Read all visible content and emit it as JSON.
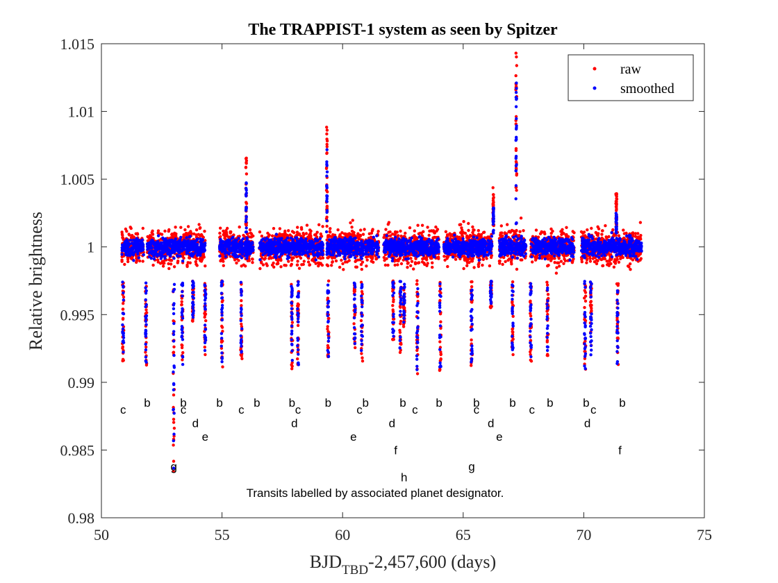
{
  "chart_data": {
    "type": "scatter",
    "title": "The TRAPPIST-1 system as seen by Spitzer",
    "xlabel": {
      "main": "BJD",
      "sub": "TBD",
      "rest": "-2,457,600 (days)"
    },
    "ylabel": "Relative brightness",
    "xlim": [
      50,
      75
    ],
    "ylim": [
      0.98,
      1.015
    ],
    "xticks": [
      50,
      55,
      60,
      65,
      70,
      75
    ],
    "xtick_labels": [
      "50",
      "55",
      "60",
      "65",
      "70",
      "75"
    ],
    "yticks": [
      0.98,
      0.985,
      0.99,
      0.995,
      1.0,
      1.005,
      1.01,
      1.015
    ],
    "ytick_labels": [
      "0.98",
      "0.985",
      "0.99",
      "0.995",
      "1",
      "1.005",
      "1.01",
      "1.015"
    ],
    "grid": false,
    "legend_position": "top-right",
    "series": [
      {
        "name": "raw",
        "color": "#ff0000",
        "marker": "point",
        "baseline": 1.0,
        "scatter_half_width": 0.0016
      },
      {
        "name": "smoothed",
        "color": "#0000ff",
        "marker": "point",
        "baseline": 1.0,
        "scatter_half_width": 0.0011
      }
    ],
    "observing_segments": [
      [
        50.85,
        51.75
      ],
      [
        51.9,
        54.3
      ],
      [
        54.9,
        56.3
      ],
      [
        56.55,
        59.2
      ],
      [
        59.35,
        61.5
      ],
      [
        61.7,
        64.0
      ],
      [
        64.2,
        66.2
      ],
      [
        66.5,
        67.6
      ],
      [
        67.8,
        69.6
      ],
      [
        69.9,
        72.4
      ]
    ],
    "transit_dips": [
      [
        50.9,
        0.9915
      ],
      [
        51.85,
        0.991
      ],
      [
        53.0,
        0.9828
      ],
      [
        53.35,
        0.991
      ],
      [
        53.8,
        0.9945
      ],
      [
        54.3,
        0.992
      ],
      [
        55.0,
        0.991
      ],
      [
        55.8,
        0.9915
      ],
      [
        57.9,
        0.991
      ],
      [
        58.15,
        0.991
      ],
      [
        59.4,
        0.9915
      ],
      [
        60.5,
        0.9925
      ],
      [
        60.8,
        0.9915
      ],
      [
        62.1,
        0.993
      ],
      [
        62.4,
        0.992
      ],
      [
        62.55,
        0.994
      ],
      [
        63.1,
        0.9905
      ],
      [
        64.05,
        0.9905
      ],
      [
        65.35,
        0.991
      ],
      [
        66.15,
        0.9955
      ],
      [
        67.05,
        0.992
      ],
      [
        67.8,
        0.9915
      ],
      [
        68.5,
        0.9915
      ],
      [
        70.05,
        0.9905
      ],
      [
        70.3,
        0.9915
      ],
      [
        71.4,
        0.991
      ]
    ],
    "flares": [
      [
        56.0,
        1.0066
      ],
      [
        59.35,
        1.009
      ],
      [
        67.2,
        1.0146
      ],
      [
        66.25,
        1.0044
      ],
      [
        71.35,
        1.004
      ]
    ],
    "transit_labels": [
      {
        "text": "c",
        "x": 50.9,
        "y": 0.988
      },
      {
        "text": "b",
        "x": 51.9,
        "y": 0.9885
      },
      {
        "text": "b",
        "x": 53.4,
        "y": 0.9885
      },
      {
        "text": "c",
        "x": 53.4,
        "y": 0.988
      },
      {
        "text": "d",
        "x": 53.9,
        "y": 0.987
      },
      {
        "text": "e",
        "x": 54.3,
        "y": 0.986
      },
      {
        "text": "b",
        "x": 54.9,
        "y": 0.9885
      },
      {
        "text": "c",
        "x": 55.8,
        "y": 0.988
      },
      {
        "text": "b",
        "x": 56.45,
        "y": 0.9885
      },
      {
        "text": "b",
        "x": 57.9,
        "y": 0.9885
      },
      {
        "text": "c",
        "x": 58.15,
        "y": 0.988
      },
      {
        "text": "d",
        "x": 58.0,
        "y": 0.987
      },
      {
        "text": "b",
        "x": 59.4,
        "y": 0.9885
      },
      {
        "text": "b",
        "x": 60.95,
        "y": 0.9885
      },
      {
        "text": "c",
        "x": 60.7,
        "y": 0.988
      },
      {
        "text": "e",
        "x": 60.45,
        "y": 0.986
      },
      {
        "text": "b",
        "x": 62.5,
        "y": 0.9885
      },
      {
        "text": "c",
        "x": 63.0,
        "y": 0.988
      },
      {
        "text": "d",
        "x": 62.05,
        "y": 0.987
      },
      {
        "text": "f",
        "x": 62.2,
        "y": 0.985
      },
      {
        "text": "h",
        "x": 62.55,
        "y": 0.983
      },
      {
        "text": "b",
        "x": 64.0,
        "y": 0.9885
      },
      {
        "text": "b",
        "x": 65.55,
        "y": 0.9885
      },
      {
        "text": "c",
        "x": 65.55,
        "y": 0.988
      },
      {
        "text": "d",
        "x": 66.15,
        "y": 0.987
      },
      {
        "text": "e",
        "x": 66.5,
        "y": 0.986
      },
      {
        "text": "g",
        "x": 65.35,
        "y": 0.9838
      },
      {
        "text": "g",
        "x": 53.0,
        "y": 0.9838
      },
      {
        "text": "b",
        "x": 67.05,
        "y": 0.9885
      },
      {
        "text": "c",
        "x": 67.85,
        "y": 0.988
      },
      {
        "text": "b",
        "x": 68.6,
        "y": 0.9885
      },
      {
        "text": "b",
        "x": 70.1,
        "y": 0.9885
      },
      {
        "text": "c",
        "x": 70.4,
        "y": 0.988
      },
      {
        "text": "d",
        "x": 70.15,
        "y": 0.987
      },
      {
        "text": "b",
        "x": 71.6,
        "y": 0.9885
      },
      {
        "text": "f",
        "x": 71.5,
        "y": 0.985
      }
    ],
    "annotation": "Transits labelled by associated planet designator."
  }
}
